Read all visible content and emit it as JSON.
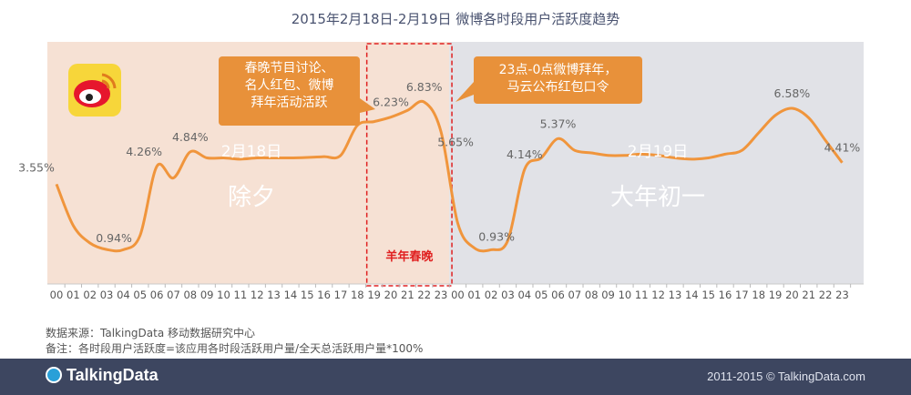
{
  "title": "2015年2月18日-2月19日 微博各时段用户活跃度趋势",
  "colors": {
    "line": "#f0953c",
    "day1_bg": "#f6e1d4",
    "day2_bg": "#e1e2e7",
    "highlight_box": "#e02020",
    "callout": "#e8913a",
    "footer": "#3d4660"
  },
  "chart_data": {
    "type": "line",
    "title": "2015年2月18日-2月19日 微博各时段用户活跃度趋势",
    "x": [
      "00",
      "01",
      "02",
      "03",
      "04",
      "05",
      "06",
      "07",
      "08",
      "09",
      "10",
      "11",
      "12",
      "13",
      "14",
      "15",
      "16",
      "17",
      "18",
      "19",
      "20",
      "21",
      "22",
      "23",
      "00",
      "01",
      "02",
      "03",
      "04",
      "05",
      "06",
      "07",
      "08",
      "09",
      "10",
      "11",
      "12",
      "13",
      "14",
      "15",
      "16",
      "17",
      "18",
      "19",
      "20",
      "21",
      "22",
      "23"
    ],
    "y": [
      3.55,
      1.9,
      1.2,
      0.94,
      0.93,
      1.5,
      4.26,
      3.8,
      4.84,
      4.6,
      4.6,
      4.55,
      4.6,
      4.6,
      4.6,
      4.62,
      4.65,
      4.7,
      5.9,
      6.05,
      6.23,
      6.5,
      6.83,
      5.65,
      2.0,
      1.0,
      0.93,
      1.3,
      4.14,
      4.6,
      5.37,
      4.9,
      4.8,
      4.7,
      4.7,
      4.75,
      4.7,
      4.6,
      4.55,
      4.6,
      4.75,
      4.9,
      5.6,
      6.3,
      6.58,
      6.2,
      5.3,
      4.41
    ],
    "point_labels": [
      {
        "index": 0,
        "text": "3.55%"
      },
      {
        "index": 3,
        "text": "0.94%"
      },
      {
        "index": 6,
        "text": "4.26%"
      },
      {
        "index": 8,
        "text": "4.84%"
      },
      {
        "index": 20,
        "text": "6.23%"
      },
      {
        "index": 22,
        "text": "6.83%"
      },
      {
        "index": 23,
        "text": "5.65%"
      },
      {
        "index": 26,
        "text": "0.93%"
      },
      {
        "index": 28,
        "text": "4.14%"
      },
      {
        "index": 30,
        "text": "5.37%"
      },
      {
        "index": 44,
        "text": "6.58%"
      },
      {
        "index": 47,
        "text": "4.41%"
      }
    ],
    "grid": false,
    "legend": "none"
  },
  "day_labels": {
    "day1_date": "2月18日",
    "day1_name": "除夕",
    "day2_date": "2月19日",
    "day2_name": "大年初一"
  },
  "highlight": {
    "label": "羊年春晚",
    "start_index": 19,
    "end_index": 23
  },
  "callouts": {
    "left": [
      "春晚节目讨论、",
      "名人红包、微博",
      "拜年活动活跃"
    ],
    "right": [
      "23点-0点微博拜年，",
      "马云公布红包口令"
    ]
  },
  "logo_icon": "weibo-logo-icon",
  "source_lines": [
    "数据来源：TalkingData 移动数据研究中心",
    "备注：各时段用户活跃度=该应用各时段活跃用户量/全天总活跃用户量*100%"
  ],
  "footer": {
    "brand": "TalkingData",
    "copyright": "2011-2015 © TalkingData.com"
  }
}
